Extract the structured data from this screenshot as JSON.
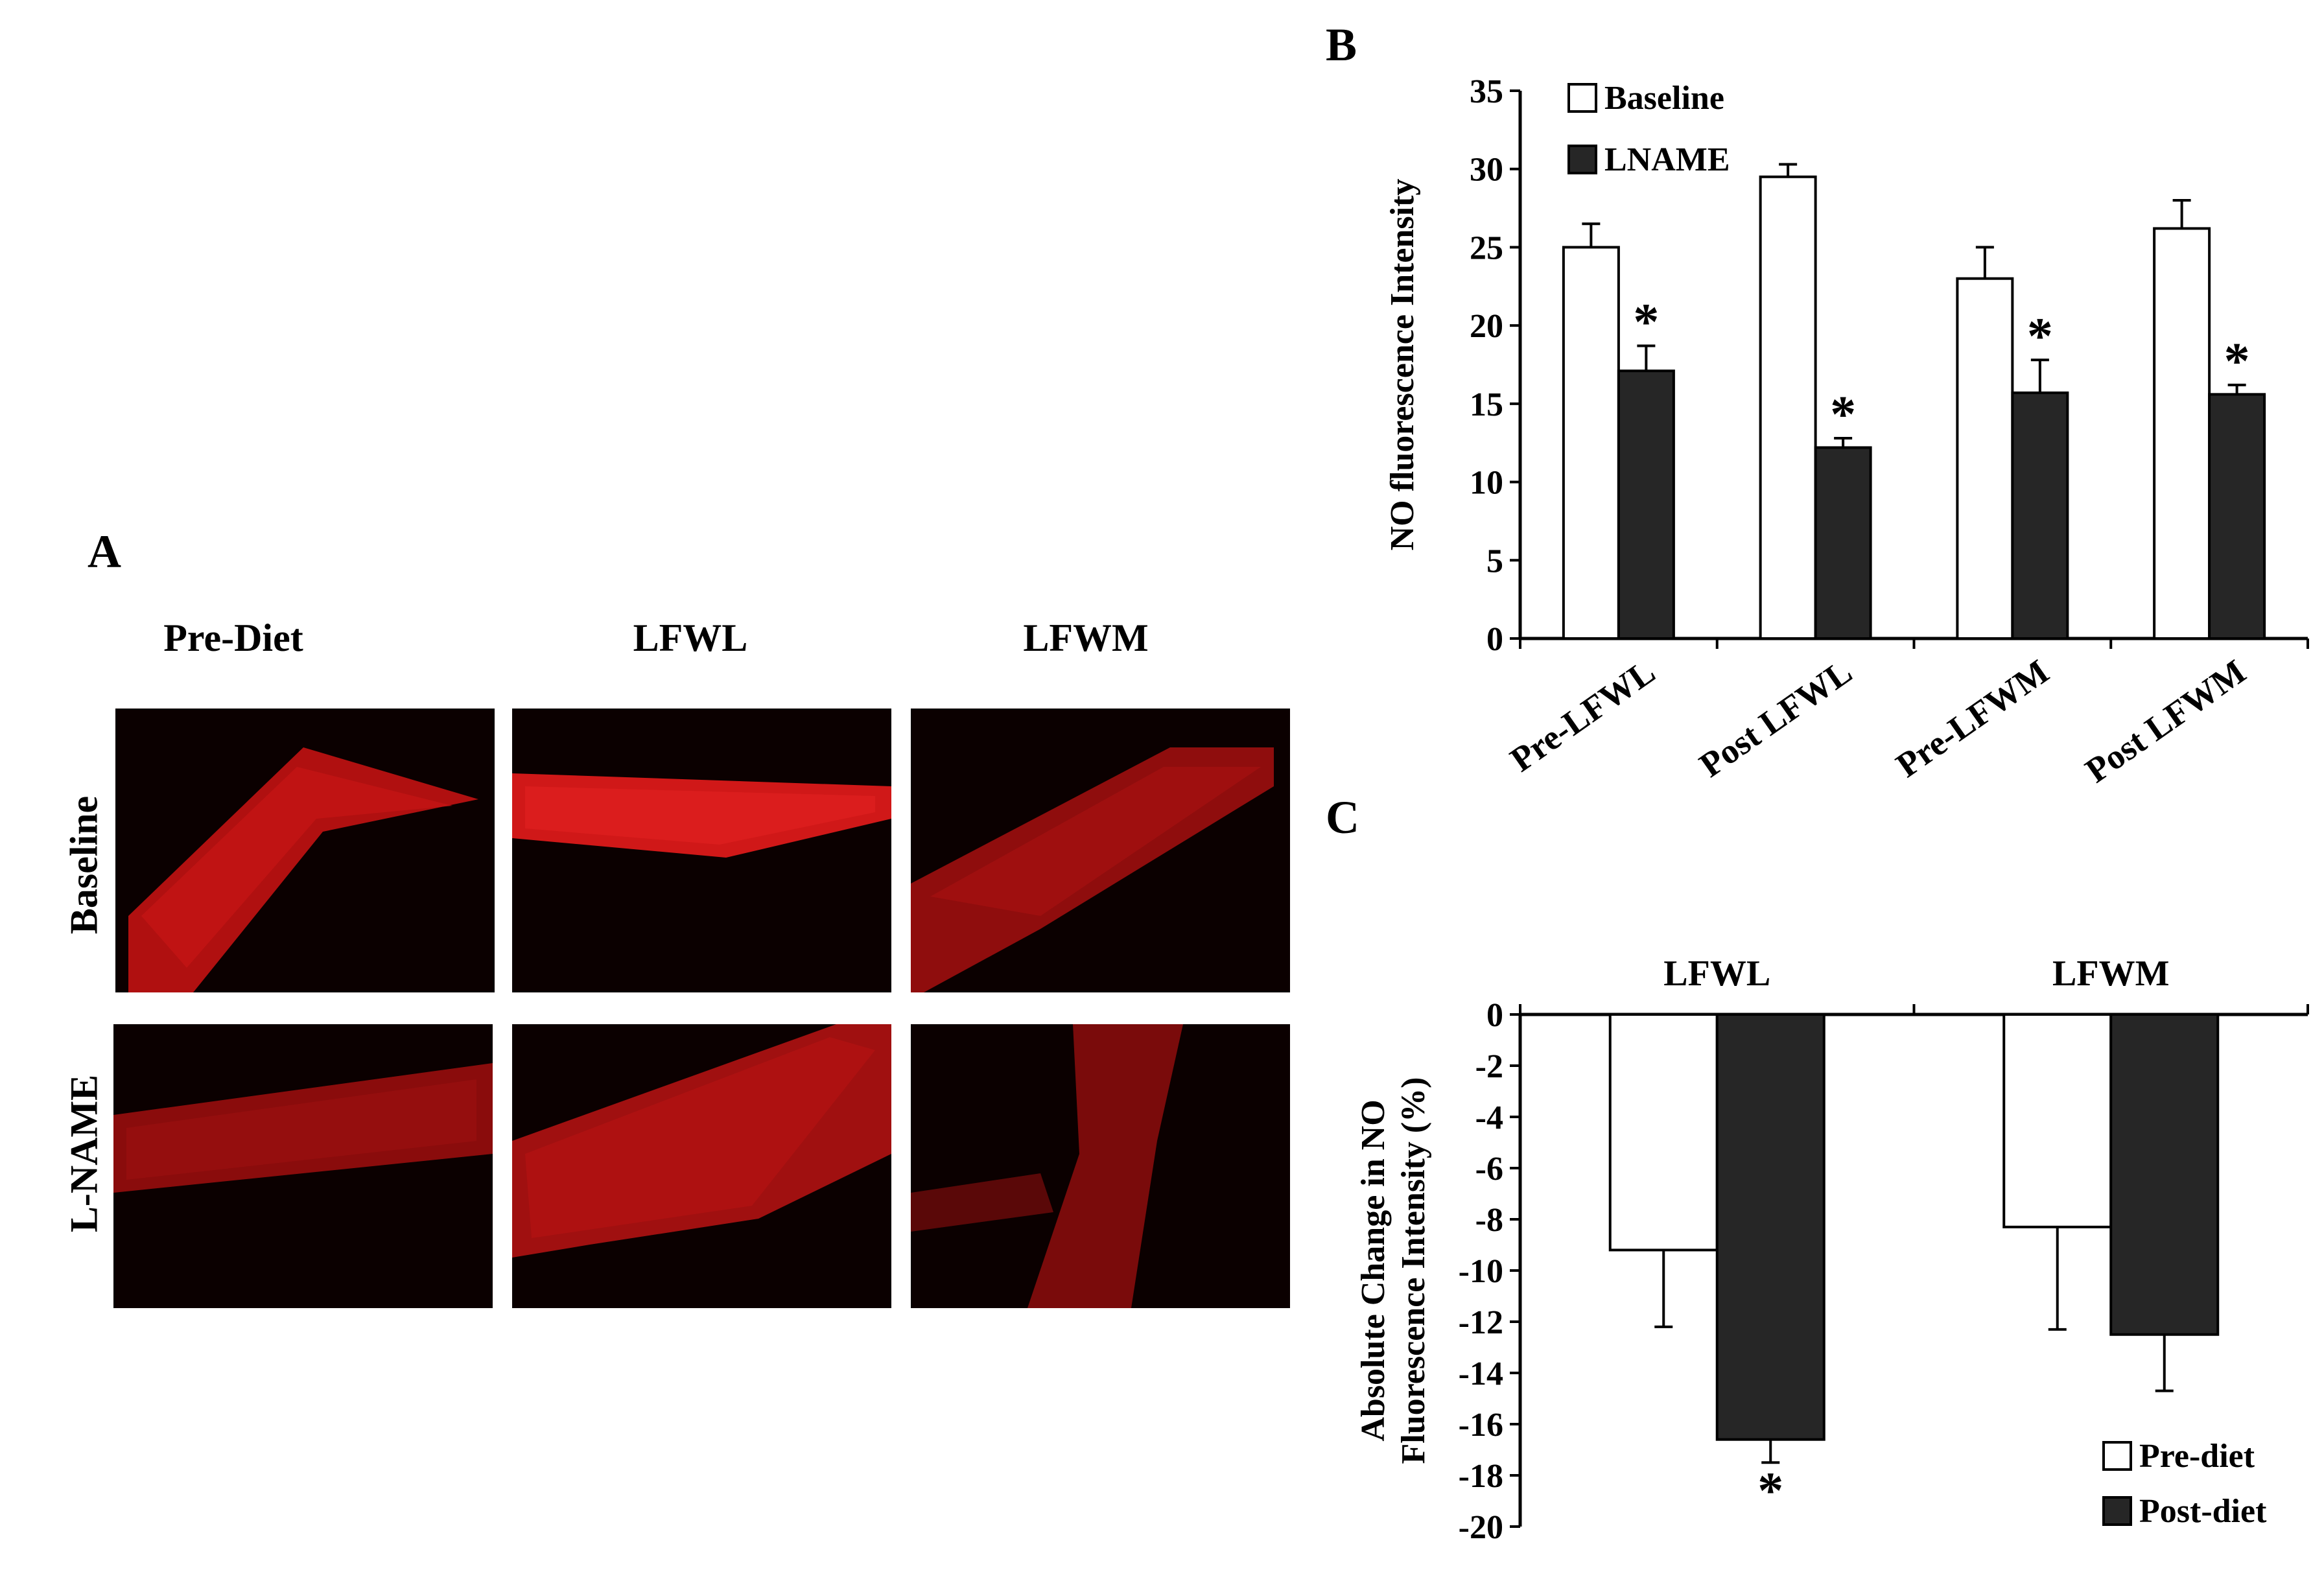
{
  "panel_labels": {
    "a": "A",
    "b": "B",
    "c": "C"
  },
  "panel_a": {
    "columns": [
      "Pre-Diet",
      "LFWL",
      "LFWM"
    ],
    "rows": [
      "Baseline",
      "L-NAME"
    ]
  },
  "colors": {
    "tissue": "#c01010",
    "background": "#0b0000",
    "dark_bar": "#262626",
    "light_bar": "#ffffff"
  },
  "chart_data": [
    {
      "type": "bar",
      "panel": "B",
      "categories": [
        "Pre-LFWL",
        "Post LFWL",
        "Pre-LFWM",
        "Post LFWM"
      ],
      "ylabel": "NO fluorescence Intensity",
      "xlabel": "",
      "ylim": [
        0,
        35
      ],
      "yticks": [
        0,
        5,
        10,
        15,
        20,
        25,
        30,
        35
      ],
      "legend_position": "top-left",
      "series": [
        {
          "name": "Baseline",
          "color": "#ffffff",
          "values": [
            25.0,
            29.5,
            23.0,
            26.2
          ],
          "errors": [
            1.5,
            0.8,
            2.0,
            1.8
          ]
        },
        {
          "name": "LNAME",
          "color": "#262626",
          "values": [
            17.1,
            12.2,
            15.7,
            15.6
          ],
          "errors": [
            1.6,
            0.6,
            2.1,
            0.6
          ]
        }
      ],
      "annotations": [
        "*",
        "*",
        "*",
        "*"
      ]
    },
    {
      "type": "bar",
      "panel": "C",
      "categories": [
        "LFWL",
        "LFWM"
      ],
      "ylabel": "Absolute Change in NO Fluorescence Intensity (%)",
      "xlabel": "",
      "ylim": [
        -20,
        0
      ],
      "yticks": [
        0,
        -2,
        -4,
        -6,
        -8,
        -10,
        -12,
        -14,
        -16,
        -18,
        -20
      ],
      "legend_position": "bottom-right",
      "series": [
        {
          "name": "Pre-diet",
          "color": "#ffffff",
          "values": [
            -9.2,
            -8.3
          ],
          "errors": [
            3.0,
            4.0
          ]
        },
        {
          "name": "Post-diet",
          "color": "#262626",
          "values": [
            -16.6,
            -12.5
          ],
          "errors": [
            0.9,
            2.2
          ]
        }
      ],
      "annotations": [
        "*"
      ]
    }
  ]
}
